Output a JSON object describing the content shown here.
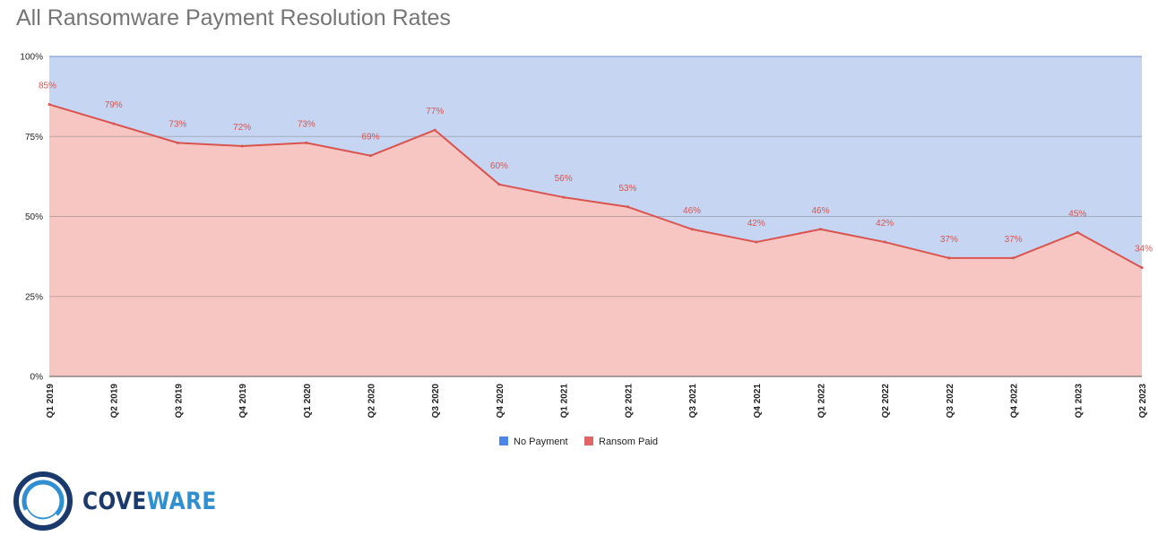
{
  "chart_data": {
    "type": "area",
    "stacked": true,
    "percent": true,
    "title": "All Ransomware Payment Resolution Rates",
    "categories": [
      "Q1 2019",
      "Q2 2019",
      "Q3 2019",
      "Q4 2019",
      "Q1 2020",
      "Q2 2020",
      "Q3 2020",
      "Q4 2020",
      "Q1 2021",
      "Q2 2021",
      "Q3 2021",
      "Q4 2021",
      "Q1 2022",
      "Q2 2022",
      "Q3 2022",
      "Q4 2022",
      "Q1 2023",
      "Q2 2023"
    ],
    "series": [
      {
        "name": "No Payment",
        "color": "#c6d6f2",
        "legend_color": "#4a86e8",
        "values": [
          15,
          21,
          27,
          28,
          27,
          31,
          23,
          40,
          44,
          47,
          54,
          58,
          54,
          58,
          63,
          63,
          55,
          66
        ]
      },
      {
        "name": "Ransom Paid",
        "color": "#f8c6c2",
        "line_color": "#d9534f",
        "legend_color": "#e06666",
        "values": [
          85,
          79,
          73,
          72,
          73,
          69,
          77,
          60,
          56,
          53,
          46,
          42,
          46,
          42,
          37,
          37,
          45,
          34
        ]
      }
    ],
    "data_labels": [
      "85%",
      "79%",
      "73%",
      "72%",
      "73%",
      "69%",
      "77%",
      "60%",
      "56%",
      "53%",
      "46%",
      "42%",
      "46%",
      "42%",
      "37%",
      "37%",
      "45%",
      "34%"
    ],
    "y_ticks": [
      0,
      25,
      50,
      75,
      100
    ],
    "y_tick_labels": [
      "0%",
      "25%",
      "50%",
      "75%",
      "100%"
    ],
    "ylim": [
      0,
      100
    ],
    "legend_position": "bottom",
    "grid": true
  },
  "logo": {
    "text_dark": "COVE",
    "text_light": "WARE"
  }
}
